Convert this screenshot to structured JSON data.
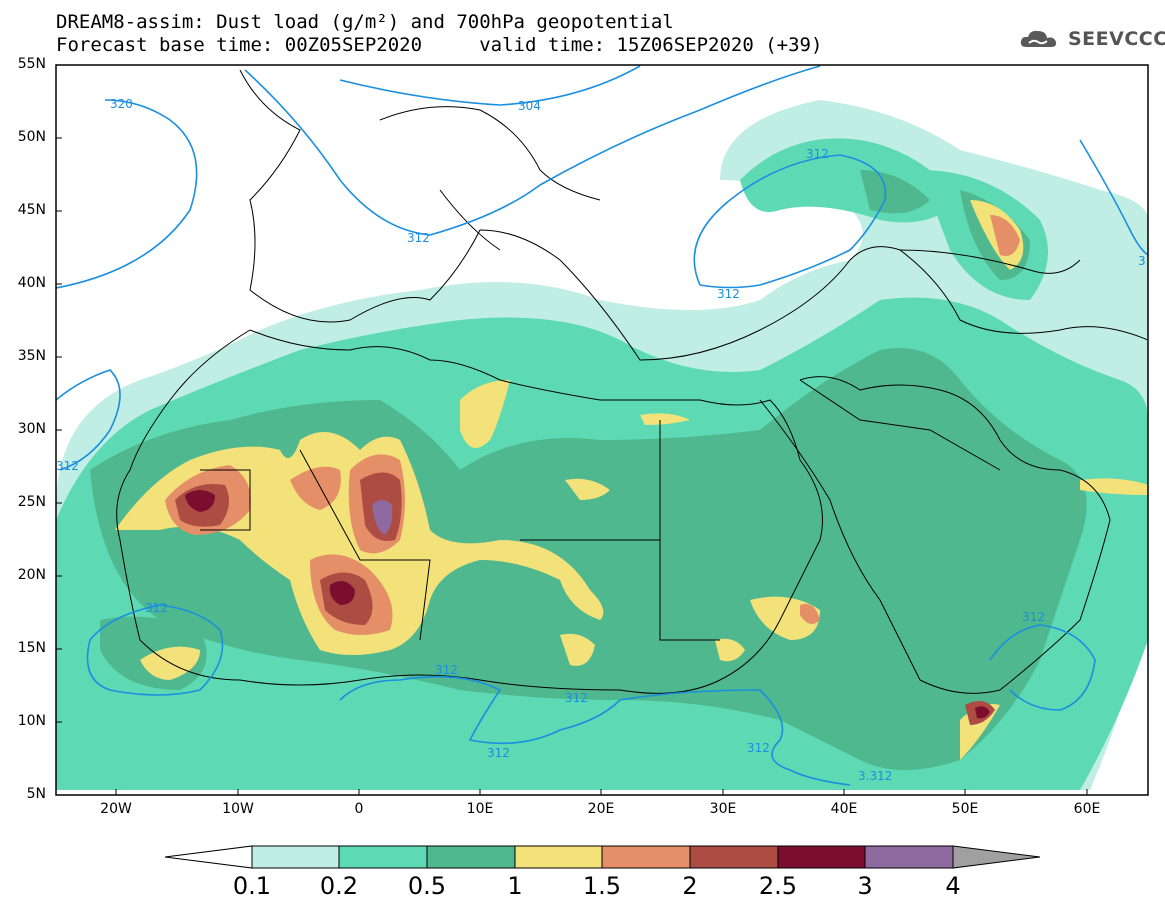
{
  "header": {
    "title_line1": "DREAM8-assim: Dust load (g/m²) and 700hPa geopotential",
    "title_line2": "Forecast base time: 00Z05SEP2020     valid time: 15Z06SEP2020 (+39)",
    "logo_text": "SEEVCCC"
  },
  "map": {
    "lat_labels": [
      "55N",
      "50N",
      "45N",
      "40N",
      "35N",
      "30N",
      "25N",
      "20N",
      "15N",
      "10N",
      "5N"
    ],
    "lon_labels": [
      "20W",
      "10W",
      "0",
      "10E",
      "20E",
      "30E",
      "40E",
      "50E",
      "60E"
    ],
    "contour_labels": [
      "320",
      "304",
      "312",
      "312",
      "312",
      "312",
      "312",
      "312",
      "312",
      "312",
      "312",
      "3",
      "312",
      "3.312"
    ]
  },
  "colorbar": {
    "labels": [
      "0.1",
      "0.2",
      "0.5",
      "1",
      "1.5",
      "2",
      "2.5",
      "3",
      "4"
    ],
    "colors": [
      "#c0eee4",
      "#5ddab3",
      "#4fb88f",
      "#f3e27a",
      "#e48f67",
      "#ad4c43",
      "#7b0e2e",
      "#8e6aa0"
    ],
    "extend_high_color": "#a0a0a0"
  },
  "colors": {
    "contour": "#1a8fe0",
    "map_border": "#000000"
  }
}
